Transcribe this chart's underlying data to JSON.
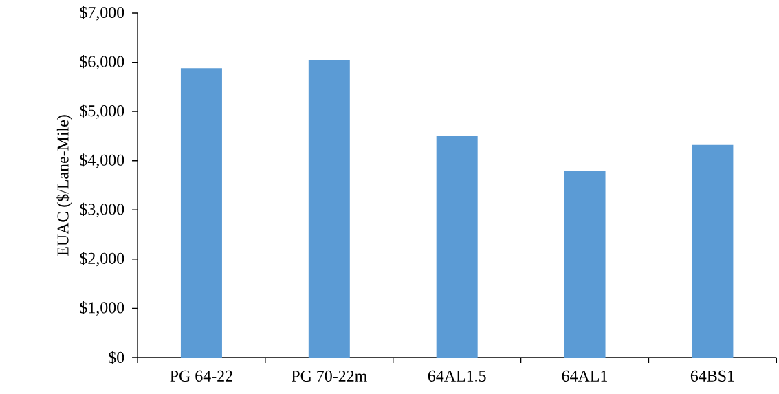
{
  "chart_data": {
    "type": "bar",
    "ylabel": "EUAC ($/Lane-Mile)",
    "categories": [
      "PG 64-22",
      "PG 70-22m",
      "64AL1.5",
      "64AL1",
      "64BS1"
    ],
    "values": [
      5880,
      6050,
      4500,
      3800,
      4320
    ],
    "color": "#5b9bd5",
    "ylim": [
      0,
      7000
    ],
    "yticks": [
      {
        "value": 0,
        "label": "$0"
      },
      {
        "value": 1000,
        "label": "$1,000"
      },
      {
        "value": 2000,
        "label": "$2,000"
      },
      {
        "value": 3000,
        "label": "$3,000"
      },
      {
        "value": 4000,
        "label": "$4,000"
      },
      {
        "value": 5000,
        "label": "$5,000"
      },
      {
        "value": 6000,
        "label": "$6,000"
      },
      {
        "value": 7000,
        "label": "$7,000"
      }
    ],
    "grid": false
  }
}
